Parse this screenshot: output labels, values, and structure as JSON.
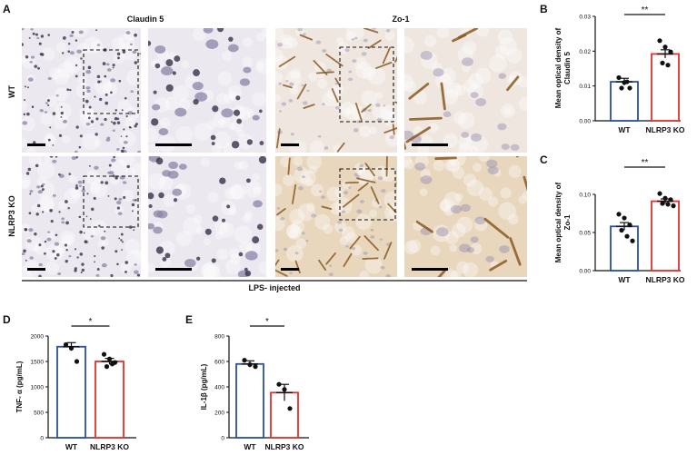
{
  "figure": {
    "panel_letters": {
      "A": "A",
      "B": "B",
      "C": "C",
      "D": "D",
      "E": "E"
    },
    "panel_a": {
      "col_headers": [
        "Claudin 5",
        "Zo-1"
      ],
      "row_labels": [
        "WT",
        "NLRP3 KO"
      ],
      "footer": "LPS- injected",
      "colors": {
        "claudin_bg": "#ebe8ef",
        "claudin_stain": "#3a2f4a",
        "zo1_bg": "#efe7df",
        "zo1_stain": "#8a5a22",
        "zo1_ko_bg": "#e8d6bd",
        "nuclei": "#8c84a8"
      }
    }
  },
  "chart_data": [
    {
      "panel": "B",
      "type": "bar",
      "categories": [
        "WT",
        "NLRP3 KO"
      ],
      "values": [
        0.0112,
        0.0192
      ],
      "errors": [
        0.001,
        0.0012
      ],
      "points": [
        [
          0.0124,
          0.011,
          0.0094,
          0.0094,
          0.0112
        ],
        [
          0.023,
          0.0212,
          0.0198,
          0.0166,
          0.016
        ]
      ],
      "ylabel": "Mean optical density of Claudin 5",
      "ylabel_lines": [
        "Mean optical density of",
        "Claudin 5"
      ],
      "ylim": [
        0,
        0.03
      ],
      "yticks": [
        "0.00",
        "0.01",
        "0.02",
        "0.03"
      ],
      "ytick_values": [
        0,
        0.01,
        0.02,
        0.03
      ],
      "significance": "**",
      "colors": [
        "#2b4f9e",
        "#e0322c"
      ]
    },
    {
      "panel": "C",
      "type": "bar",
      "categories": [
        "WT",
        "NLRP3 KO"
      ],
      "values": [
        0.058,
        0.091
      ],
      "errors": [
        0.005,
        0.003
      ],
      "points": [
        [
          0.074,
          0.069,
          0.06,
          0.053,
          0.045,
          0.039
        ],
        [
          0.101,
          0.095,
          0.093,
          0.088,
          0.087,
          0.085
        ]
      ],
      "ylabel": "Mean optical density of Zo-1",
      "ylabel_lines": [
        "Mean optical density of",
        "Zo-1"
      ],
      "ylim": [
        0,
        0.125
      ],
      "yticks": [
        "0.00",
        "0.05",
        "0.10"
      ],
      "ytick_values": [
        0,
        0.05,
        0.1
      ],
      "significance": "**",
      "colors": [
        "#2b4f9e",
        "#e0322c"
      ]
    },
    {
      "panel": "D",
      "type": "bar",
      "categories": [
        "WT",
        "NLRP3 KO"
      ],
      "values": [
        1790,
        1500
      ],
      "errors": [
        80,
        60
      ],
      "points": [
        [
          1830,
          1760,
          1500
        ],
        [
          1640,
          1550,
          1480,
          1400,
          1450
        ]
      ],
      "ylabel": "TNF- α (pg/mL)",
      "ylabel_lines": [
        "TNF- α (pg/mL)"
      ],
      "ylim": [
        0,
        2000
      ],
      "yticks": [
        "0",
        "500",
        "1000",
        "1500",
        "2000"
      ],
      "ytick_values": [
        0,
        500,
        1000,
        1500,
        2000
      ],
      "significance": "*",
      "colors": [
        "#2b4f9e",
        "#e0322c"
      ]
    },
    {
      "panel": "E",
      "type": "bar",
      "categories": [
        "WT",
        "NLRP3 KO"
      ],
      "values": [
        580,
        355
      ],
      "errors": [
        25,
        65
      ],
      "points": [
        [
          610,
          575,
          560
        ],
        [
          420,
          380,
          230
        ]
      ],
      "ylabel": "IL-1β (pg/mL)",
      "ylabel_lines": [
        "IL-1β (pg/mL)"
      ],
      "ylim": [
        0,
        800
      ],
      "yticks": [
        "0",
        "200",
        "400",
        "600",
        "800"
      ],
      "ytick_values": [
        0,
        200,
        400,
        600,
        800
      ],
      "significance": "*",
      "colors": [
        "#2b4f9e",
        "#e0322c"
      ]
    }
  ]
}
